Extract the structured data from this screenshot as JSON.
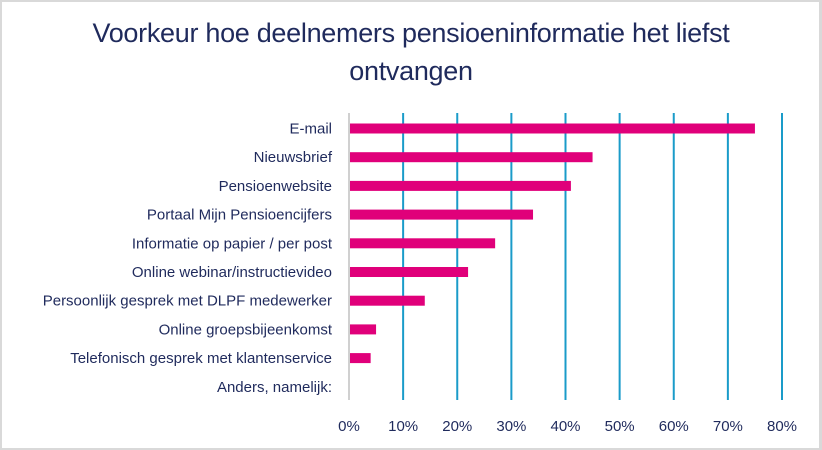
{
  "chart_data": {
    "type": "bar",
    "orientation": "horizontal",
    "title": "Voorkeur hoe deelnemers pensioeninformatie het liefst ontvangen",
    "title_lines": [
      "Voorkeur hoe deelnemers pensioeninformatie het liefst",
      "ontvangen"
    ],
    "categories": [
      "E-mail",
      "Nieuwsbrief",
      "Pensioenwebsite",
      "Portaal Mijn Pensioencijfers",
      "Informatie op papier / per post",
      "Online webinar/instructievideo",
      "Persoonlijk gesprek met DLPF medewerker",
      "Online groepsbijeenkomst",
      "Telefonisch gesprek met klantenservice",
      "Anders, namelijk:"
    ],
    "values": [
      75,
      45,
      41,
      34,
      27,
      22,
      14,
      5,
      4,
      0
    ],
    "unit": "%",
    "xlabel": "",
    "ylabel": "",
    "xlim": [
      0,
      80
    ],
    "xticks": [
      0,
      10,
      20,
      30,
      40,
      50,
      60,
      70,
      80
    ],
    "xtick_labels": [
      "0%",
      "10%",
      "20%",
      "30%",
      "40%",
      "50%",
      "60%",
      "70%",
      "80%"
    ],
    "grid": "vertical",
    "legend": "none",
    "colors": {
      "bar": "#e0007a",
      "grid": "#1a9bc9",
      "axis": "#d0d0d0",
      "text": "#1f2a5c"
    }
  }
}
